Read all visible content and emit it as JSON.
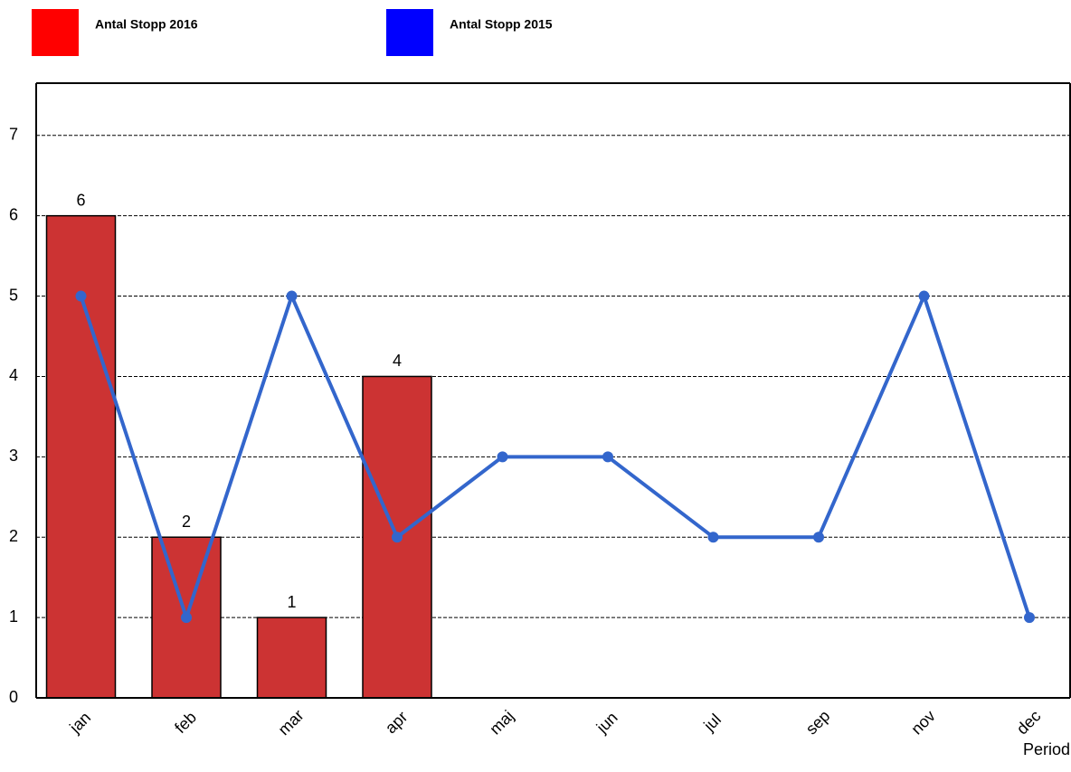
{
  "chart_data": {
    "type": "bar",
    "categories": [
      "jan",
      "feb",
      "mar",
      "apr",
      "maj",
      "jun",
      "jul",
      "sep",
      "nov",
      "dec"
    ],
    "series": [
      {
        "name": "Antal Stopp 2016",
        "type": "bar",
        "color": "#cc3333",
        "legend_color": "#ff0000",
        "values": [
          6,
          2,
          1,
          4,
          null,
          null,
          null,
          null,
          null,
          null
        ]
      },
      {
        "name": "Antal Stopp 2015",
        "type": "line",
        "color": "#3366cc",
        "legend_color": "#0000ff",
        "values": [
          5,
          1,
          5,
          2,
          3,
          3,
          2,
          2,
          5,
          1
        ]
      }
    ],
    "x_label": "Period",
    "ylim": [
      0,
      7.65
    ],
    "yticks": [
      0,
      1,
      2,
      3,
      4,
      5,
      6,
      7
    ],
    "grid": true
  }
}
